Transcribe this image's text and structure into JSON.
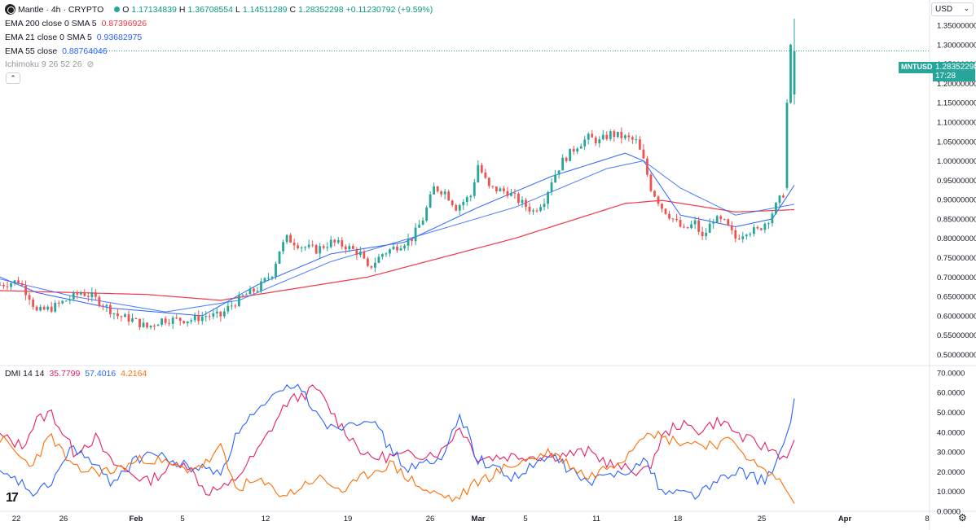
{
  "header": {
    "symbol": "Mantle · 4h · CRYPTO",
    "o_label": "O",
    "o_value": "1.17134839",
    "h_label": "H",
    "h_value": "1.36708554",
    "l_label": "L",
    "l_value": "1.14511289",
    "c_label": "C",
    "c_value": "1.28352298",
    "change": "+0.11230792 (+9.59%)"
  },
  "indicators": {
    "ema200_label": "EMA 200 close 0 SMA 5",
    "ema200_value": "0.87396926",
    "ema21_label": "EMA 21 close 0 SMA 5",
    "ema21_value": "0.93682975",
    "ema55_label": "EMA 55 close",
    "ema55_value": "0.88764046",
    "ichimoku_label": "Ichimoku 9 26 52 26",
    "dmi_label": "DMI 14 14",
    "dmi_plus": "35.7799",
    "dmi_minus": "57.4016",
    "dmi_adx": "4.2164"
  },
  "currency": "USD",
  "price_tag": {
    "ticker": "MNTUSD",
    "price": "1.28352298",
    "countdown": "17:28"
  },
  "colors": {
    "up": "#26a69a",
    "down": "#ef5350",
    "ema200": "#f23645",
    "ema21": "#2962ff",
    "ema55": "#2962ff",
    "dmi_plus": "#e91e63",
    "dmi_minus": "#2962ff",
    "adx": "#ff6d00"
  },
  "chart_data": [
    {
      "type": "candlestick",
      "title": "Mantle · 4h · CRYPTO",
      "ylim": [
        0.48,
        1.39
      ],
      "y_ticks": [
        "1.35000000",
        "1.30000000",
        "1.25000000",
        "1.20000000",
        "1.15000000",
        "1.10000000",
        "1.05000000",
        "1.00000000",
        "0.95000000",
        "0.90000000",
        "0.85000000",
        "0.80000000",
        "0.75000000",
        "0.70000000",
        "0.65000000",
        "0.60000000",
        "0.55000000",
        "0.50000000"
      ],
      "x_ticks": [
        "22",
        "26",
        "Feb",
        "5",
        "12",
        "19",
        "26",
        "Mar",
        "5",
        "11",
        "18",
        "25",
        "Apr",
        "8"
      ],
      "close_path": [
        [
          0,
          0.68
        ],
        [
          5,
          0.69
        ],
        [
          8,
          0.65
        ],
        [
          10,
          0.61
        ],
        [
          14,
          0.62
        ],
        [
          18,
          0.64
        ],
        [
          22,
          0.66
        ],
        [
          25,
          0.65
        ],
        [
          28,
          0.63
        ],
        [
          32,
          0.6
        ],
        [
          36,
          0.59
        ],
        [
          40,
          0.57
        ],
        [
          44,
          0.59
        ],
        [
          48,
          0.59
        ],
        [
          52,
          0.59
        ],
        [
          56,
          0.6
        ],
        [
          60,
          0.6
        ],
        [
          62,
          0.62
        ],
        [
          66,
          0.65
        ],
        [
          70,
          0.67
        ],
        [
          74,
          0.71
        ],
        [
          76,
          0.77
        ],
        [
          78,
          0.8
        ],
        [
          82,
          0.78
        ],
        [
          86,
          0.77
        ],
        [
          90,
          0.79
        ],
        [
          94,
          0.78
        ],
        [
          98,
          0.76
        ],
        [
          100,
          0.72
        ],
        [
          104,
          0.76
        ],
        [
          108,
          0.78
        ],
        [
          112,
          0.8
        ],
        [
          115,
          0.85
        ],
        [
          118,
          0.93
        ],
        [
          121,
          0.92
        ],
        [
          124,
          0.88
        ],
        [
          128,
          0.91
        ],
        [
          130,
          0.99
        ],
        [
          133,
          0.93
        ],
        [
          138,
          0.92
        ],
        [
          142,
          0.89
        ],
        [
          145,
          0.87
        ],
        [
          148,
          0.9
        ],
        [
          150,
          0.95
        ],
        [
          153,
          1.0
        ],
        [
          157,
          1.04
        ],
        [
          160,
          1.06
        ],
        [
          163,
          1.05
        ],
        [
          166,
          1.07
        ],
        [
          170,
          1.06
        ],
        [
          173,
          1.05
        ],
        [
          175,
          1.0
        ],
        [
          177,
          0.93
        ],
        [
          180,
          0.88
        ],
        [
          183,
          0.85
        ],
        [
          186,
          0.82
        ],
        [
          189,
          0.84
        ],
        [
          191,
          0.8
        ],
        [
          194,
          0.85
        ],
        [
          197,
          0.84
        ],
        [
          200,
          0.8
        ],
        [
          203,
          0.82
        ],
        [
          206,
          0.82
        ],
        [
          209,
          0.85
        ],
        [
          212,
          0.9
        ],
        [
          214,
          0.93
        ],
        [
          215,
          1.25
        ],
        [
          216,
          1.28
        ]
      ],
      "ema200": [
        [
          0,
          0.665
        ],
        [
          40,
          0.655
        ],
        [
          60,
          0.64
        ],
        [
          100,
          0.7
        ],
        [
          140,
          0.8
        ],
        [
          170,
          0.89
        ],
        [
          180,
          0.898
        ],
        [
          200,
          0.868
        ],
        [
          216,
          0.874
        ]
      ],
      "ema21": [
        [
          0,
          0.7
        ],
        [
          10,
          0.66
        ],
        [
          30,
          0.62
        ],
        [
          55,
          0.6
        ],
        [
          70,
          0.68
        ],
        [
          90,
          0.76
        ],
        [
          110,
          0.79
        ],
        [
          130,
          0.88
        ],
        [
          150,
          0.96
        ],
        [
          170,
          1.02
        ],
        [
          175,
          1.0
        ],
        [
          185,
          0.86
        ],
        [
          200,
          0.83
        ],
        [
          210,
          0.85
        ],
        [
          216,
          0.937
        ]
      ],
      "ema55": [
        [
          0,
          0.695
        ],
        [
          20,
          0.65
        ],
        [
          45,
          0.61
        ],
        [
          65,
          0.64
        ],
        [
          90,
          0.74
        ],
        [
          115,
          0.81
        ],
        [
          140,
          0.88
        ],
        [
          165,
          0.98
        ],
        [
          175,
          1.0
        ],
        [
          185,
          0.93
        ],
        [
          200,
          0.86
        ],
        [
          216,
          0.888
        ]
      ]
    },
    {
      "type": "line",
      "title": "DMI 14 14",
      "ylim": [
        0,
        72
      ],
      "y_ticks": [
        "70.0000",
        "60.0000",
        "50.0000",
        "40.0000",
        "30.0000",
        "20.0000",
        "10.0000",
        "0.0000"
      ],
      "series": [
        {
          "name": "+DI",
          "points": [
            [
              0,
              38
            ],
            [
              6,
              33
            ],
            [
              10,
              46
            ],
            [
              14,
              50
            ],
            [
              20,
              30
            ],
            [
              26,
              37
            ],
            [
              30,
              25
            ],
            [
              40,
              15
            ],
            [
              50,
              26
            ],
            [
              56,
              10
            ],
            [
              62,
              12
            ],
            [
              70,
              30
            ],
            [
              78,
              55
            ],
            [
              86,
              62
            ],
            [
              92,
              45
            ],
            [
              100,
              27
            ],
            [
              110,
              28
            ],
            [
              120,
              30
            ],
            [
              125,
              43
            ],
            [
              130,
              27
            ],
            [
              140,
              28
            ],
            [
              150,
              28
            ],
            [
              160,
              30
            ],
            [
              168,
              22
            ],
            [
              176,
              20
            ],
            [
              180,
              37
            ],
            [
              184,
              44
            ],
            [
              190,
              41
            ],
            [
              196,
              46
            ],
            [
              202,
              37
            ],
            [
              210,
              31
            ],
            [
              214,
              27
            ],
            [
              216,
              36
            ]
          ]
        },
        {
          "name": "-DI",
          "points": [
            [
              0,
              18
            ],
            [
              5,
              15
            ],
            [
              10,
              8
            ],
            [
              14,
              15
            ],
            [
              20,
              33
            ],
            [
              30,
              15
            ],
            [
              40,
              30
            ],
            [
              50,
              23
            ],
            [
              60,
              20
            ],
            [
              66,
              45
            ],
            [
              70,
              50
            ],
            [
              80,
              65
            ],
            [
              90,
              42
            ],
            [
              100,
              48
            ],
            [
              110,
              22
            ],
            [
              120,
              25
            ],
            [
              125,
              50
            ],
            [
              130,
              26
            ],
            [
              140,
              17
            ],
            [
              150,
              28
            ],
            [
              160,
              14
            ],
            [
              168,
              20
            ],
            [
              176,
              25
            ],
            [
              180,
              10
            ],
            [
              190,
              9
            ],
            [
              196,
              16
            ],
            [
              202,
              20
            ],
            [
              208,
              15
            ],
            [
              212,
              28
            ],
            [
              215,
              45
            ],
            [
              216,
              57
            ]
          ]
        },
        {
          "name": "ADX",
          "points": [
            [
              0,
              37
            ],
            [
              8,
              23
            ],
            [
              14,
              38
            ],
            [
              20,
              21
            ],
            [
              30,
              20
            ],
            [
              40,
              27
            ],
            [
              50,
              21
            ],
            [
              56,
              24
            ],
            [
              60,
              32
            ],
            [
              64,
              12
            ],
            [
              70,
              15
            ],
            [
              78,
              8
            ],
            [
              86,
              17
            ],
            [
              94,
              10
            ],
            [
              100,
              19
            ],
            [
              106,
              24
            ],
            [
              116,
              10
            ],
            [
              124,
              6
            ],
            [
              130,
              15
            ],
            [
              140,
              24
            ],
            [
              150,
              30
            ],
            [
              160,
              17
            ],
            [
              170,
              28
            ],
            [
              176,
              42
            ],
            [
              180,
              37
            ],
            [
              186,
              35
            ],
            [
              192,
              34
            ],
            [
              200,
              35
            ],
            [
              206,
              22
            ],
            [
              212,
              16
            ],
            [
              216,
              4
            ]
          ]
        }
      ]
    }
  ]
}
